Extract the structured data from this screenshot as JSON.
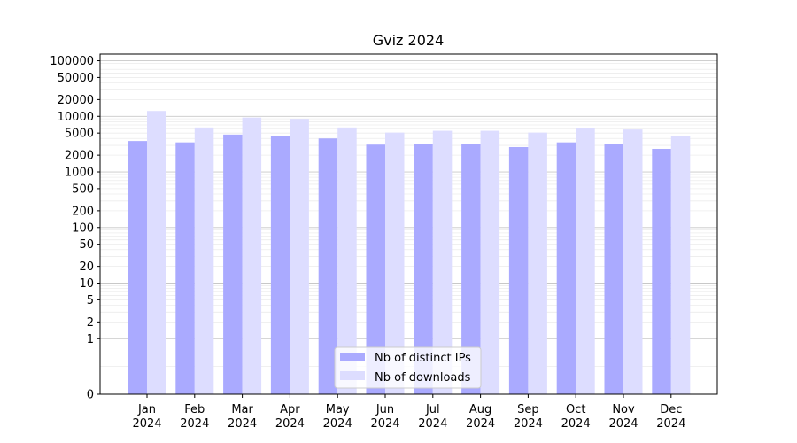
{
  "chart_data": {
    "type": "bar",
    "title": "Gviz 2024",
    "xlabel": "",
    "ylabel": "",
    "yscale": "symlog",
    "ylim": [
      0,
      100000
    ],
    "grid": "horizontal",
    "legend_position": "bottom-center",
    "categories": [
      [
        "Jan",
        "2024"
      ],
      [
        "Feb",
        "2024"
      ],
      [
        "Mar",
        "2024"
      ],
      [
        "Apr",
        "2024"
      ],
      [
        "May",
        "2024"
      ],
      [
        "Jun",
        "2024"
      ],
      [
        "Jul",
        "2024"
      ],
      [
        "Aug",
        "2024"
      ],
      [
        "Sep",
        "2024"
      ],
      [
        "Oct",
        "2024"
      ],
      [
        "Nov",
        "2024"
      ],
      [
        "Dec",
        "2024"
      ]
    ],
    "yticks": [
      "0",
      "1",
      "2",
      "5",
      "10",
      "20",
      "50",
      "100",
      "200",
      "500",
      "1000",
      "2000",
      "5000",
      "10000",
      "20000",
      "50000",
      "100000"
    ],
    "series": [
      {
        "name": "Nb of distinct IPs",
        "color": "#aaaaff",
        "values": [
          3600,
          3400,
          4700,
          4400,
          4000,
          3100,
          3200,
          3200,
          2800,
          3400,
          3200,
          2600
        ]
      },
      {
        "name": "Nb of downloads",
        "color": "#ddddff",
        "values": [
          12500,
          6300,
          9500,
          9000,
          6300,
          5100,
          5500,
          5500,
          5100,
          6200,
          5800,
          4500
        ]
      }
    ]
  }
}
